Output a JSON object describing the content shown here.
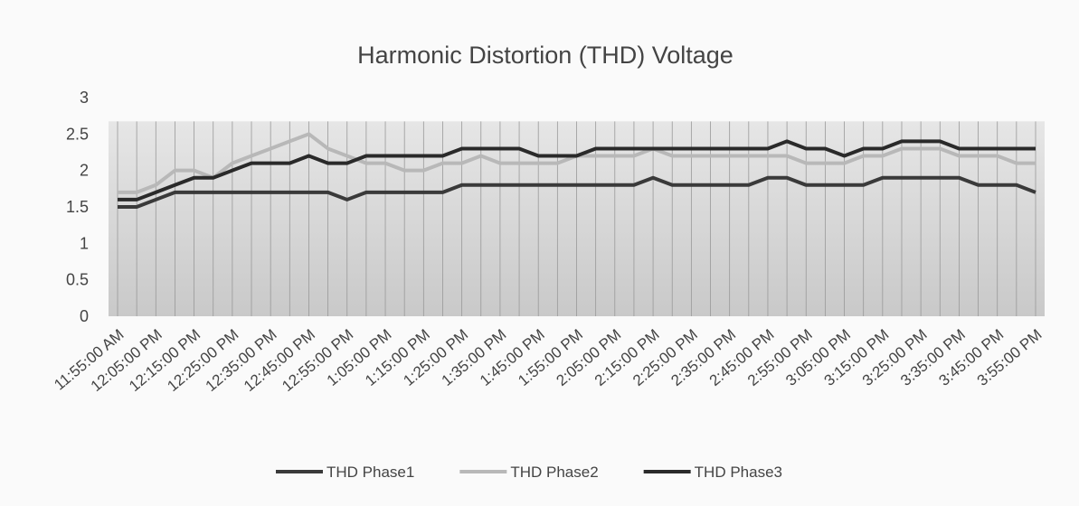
{
  "chart_data": {
    "type": "line",
    "title": "Harmonic Distortion (THD) Voltage",
    "categories": [
      "11:55:00 AM",
      null,
      "12:05:00 PM",
      null,
      "12:15:00 PM",
      null,
      "12:25:00 PM",
      null,
      "12:35:00 PM",
      null,
      "12:45:00 PM",
      null,
      "12:55:00 PM",
      null,
      "1:05:00 PM",
      null,
      "1:15:00 PM",
      null,
      "1:25:00 PM",
      null,
      "1:35:00 PM",
      null,
      "1:45:00 PM",
      null,
      "1:55:00 PM",
      null,
      "2:05:00 PM",
      null,
      "2:15:00 PM",
      null,
      "2:25:00 PM",
      null,
      "2:35:00 PM",
      null,
      "2:45:00 PM",
      null,
      "2:55:00 PM",
      null,
      "3:05:00 PM",
      null,
      "3:15:00 PM",
      null,
      "3:25:00 PM",
      null,
      "3:35:00 PM",
      null,
      "3:45:00 PM",
      null,
      "3:55:00 PM"
    ],
    "series": [
      {
        "name": "THD Phase1",
        "color": "#3a3a3a",
        "values": [
          1.5,
          1.5,
          1.6,
          1.7,
          1.7,
          1.7,
          1.7,
          1.7,
          1.7,
          1.7,
          1.7,
          1.7,
          1.6,
          1.7,
          1.7,
          1.7,
          1.7,
          1.7,
          1.8,
          1.8,
          1.8,
          1.8,
          1.8,
          1.8,
          1.8,
          1.8,
          1.8,
          1.8,
          1.9,
          1.8,
          1.8,
          1.8,
          1.8,
          1.8,
          1.9,
          1.9,
          1.8,
          1.8,
          1.8,
          1.8,
          1.9,
          1.9,
          1.9,
          1.9,
          1.9,
          1.8,
          1.8,
          1.8,
          1.7
        ]
      },
      {
        "name": "THD Phase2",
        "color": "#b8b8b8",
        "values": [
          1.7,
          1.7,
          1.8,
          2.0,
          2.0,
          1.9,
          2.1,
          2.2,
          2.3,
          2.4,
          2.5,
          2.3,
          2.2,
          2.1,
          2.1,
          2.0,
          2.0,
          2.1,
          2.1,
          2.2,
          2.1,
          2.1,
          2.1,
          2.1,
          2.2,
          2.2,
          2.2,
          2.2,
          2.3,
          2.2,
          2.2,
          2.2,
          2.2,
          2.2,
          2.2,
          2.2,
          2.1,
          2.1,
          2.1,
          2.2,
          2.2,
          2.3,
          2.3,
          2.3,
          2.2,
          2.2,
          2.2,
          2.1,
          2.1
        ]
      },
      {
        "name": "THD Phase3",
        "color": "#2a2a2a",
        "values": [
          1.6,
          1.6,
          1.7,
          1.8,
          1.9,
          1.9,
          2.0,
          2.1,
          2.1,
          2.1,
          2.2,
          2.1,
          2.1,
          2.2,
          2.2,
          2.2,
          2.2,
          2.2,
          2.3,
          2.3,
          2.3,
          2.3,
          2.2,
          2.2,
          2.2,
          2.3,
          2.3,
          2.3,
          2.3,
          2.3,
          2.3,
          2.3,
          2.3,
          2.3,
          2.3,
          2.4,
          2.3,
          2.3,
          2.2,
          2.3,
          2.3,
          2.4,
          2.4,
          2.4,
          2.3,
          2.3,
          2.3,
          2.3,
          2.3
        ]
      }
    ],
    "ylim": [
      0,
      3
    ],
    "yticks": [
      0,
      0.5,
      1,
      1.5,
      2,
      2.5,
      3
    ],
    "legend": "bottom"
  }
}
